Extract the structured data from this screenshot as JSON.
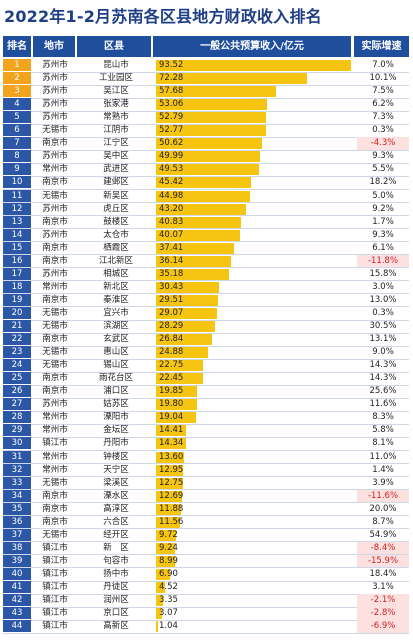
{
  "title": "2022年1-2月苏南各区县地方财政收入排名",
  "headers": {
    "rank": "排名",
    "city": "地市",
    "district": "区县",
    "value": "一般公共预算收入/亿元",
    "growth": "实际增速"
  },
  "colors": {
    "header_bg": "#1f4f9c",
    "bar": "#f6c511",
    "rank_top": "#f1a41c",
    "rank_rest": "#2b57a6",
    "negative_text": "#d21f1f",
    "negative_bg": "#fde0e0"
  },
  "chart_data": {
    "type": "bar",
    "xlim": [
      0,
      95
    ],
    "rows": [
      {
        "rank": "1",
        "city": "苏州市",
        "district": "昆山市",
        "value": 93.52,
        "value_text": "93.52",
        "growth": "7.0%",
        "negative": false
      },
      {
        "rank": "2",
        "city": "苏州市",
        "district": "工业园区",
        "value": 72.28,
        "value_text": "72.28",
        "growth": "10.1%",
        "negative": false
      },
      {
        "rank": "3",
        "city": "苏州市",
        "district": "吴江区",
        "value": 57.68,
        "value_text": "57.68",
        "growth": "7.5%",
        "negative": false
      },
      {
        "rank": "4",
        "city": "苏州市",
        "district": "张家港",
        "value": 53.06,
        "value_text": "53.06",
        "growth": "6.2%",
        "negative": false
      },
      {
        "rank": "5",
        "city": "苏州市",
        "district": "常熟市",
        "value": 52.79,
        "value_text": "52.79",
        "growth": "7.3%",
        "negative": false
      },
      {
        "rank": "6",
        "city": "无锡市",
        "district": "江阴市",
        "value": 52.77,
        "value_text": "52.77",
        "growth": "0.3%",
        "negative": false
      },
      {
        "rank": "7",
        "city": "南京市",
        "district": "江宁区",
        "value": 50.62,
        "value_text": "50.62",
        "growth": "-4.3%",
        "negative": true
      },
      {
        "rank": "8",
        "city": "苏州市",
        "district": "吴中区",
        "value": 49.99,
        "value_text": "49.99",
        "growth": "9.3%",
        "negative": false
      },
      {
        "rank": "9",
        "city": "常州市",
        "district": "武进区",
        "value": 49.53,
        "value_text": "49.53",
        "growth": "5.5%",
        "negative": false
      },
      {
        "rank": "10",
        "city": "南京市",
        "district": "建邺区",
        "value": 45.42,
        "value_text": "45.42",
        "growth": "18.2%",
        "negative": false
      },
      {
        "rank": "11",
        "city": "无锡市",
        "district": "新吴区",
        "value": 44.98,
        "value_text": "44.98",
        "growth": "5.0%",
        "negative": false
      },
      {
        "rank": "12",
        "city": "苏州市",
        "district": "虎丘区",
        "value": 43.2,
        "value_text": "43.20",
        "growth": "9.2%",
        "negative": false
      },
      {
        "rank": "13",
        "city": "南京市",
        "district": "鼓楼区",
        "value": 40.83,
        "value_text": "40.83",
        "growth": "1.7%",
        "negative": false
      },
      {
        "rank": "14",
        "city": "苏州市",
        "district": "太仓市",
        "value": 40.07,
        "value_text": "40.07",
        "growth": "9.3%",
        "negative": false
      },
      {
        "rank": "15",
        "city": "南京市",
        "district": "栖霞区",
        "value": 37.41,
        "value_text": "37.41",
        "growth": "6.1%",
        "negative": false
      },
      {
        "rank": "16",
        "city": "南京市",
        "district": "江北新区",
        "value": 36.14,
        "value_text": "36.14",
        "growth": "-11.8%",
        "negative": true
      },
      {
        "rank": "17",
        "city": "苏州市",
        "district": "相城区",
        "value": 35.18,
        "value_text": "35.18",
        "growth": "15.8%",
        "negative": false
      },
      {
        "rank": "18",
        "city": "常州市",
        "district": "新北区",
        "value": 30.43,
        "value_text": "30.43",
        "growth": "3.0%",
        "negative": false
      },
      {
        "rank": "19",
        "city": "南京市",
        "district": "秦淮区",
        "value": 29.51,
        "value_text": "29.51",
        "growth": "13.0%",
        "negative": false
      },
      {
        "rank": "20",
        "city": "无锡市",
        "district": "宜兴市",
        "value": 29.07,
        "value_text": "29.07",
        "growth": "0.3%",
        "negative": false
      },
      {
        "rank": "21",
        "city": "无锡市",
        "district": "滨湖区",
        "value": 28.29,
        "value_text": "28.29",
        "growth": "30.5%",
        "negative": false
      },
      {
        "rank": "22",
        "city": "南京市",
        "district": "玄武区",
        "value": 26.84,
        "value_text": "26.84",
        "growth": "13.1%",
        "negative": false
      },
      {
        "rank": "23",
        "city": "无锡市",
        "district": "惠山区",
        "value": 24.88,
        "value_text": "24.88",
        "growth": "9.0%",
        "negative": false
      },
      {
        "rank": "24",
        "city": "无锡市",
        "district": "锡山区",
        "value": 22.75,
        "value_text": "22.75",
        "growth": "14.3%",
        "negative": false
      },
      {
        "rank": "25",
        "city": "南京市",
        "district": "雨花台区",
        "value": 22.45,
        "value_text": "22.45",
        "growth": "14.3%",
        "negative": false
      },
      {
        "rank": "26",
        "city": "南京市",
        "district": "浦口区",
        "value": 19.85,
        "value_text": "19.85",
        "growth": "25.6%",
        "negative": false
      },
      {
        "rank": "27",
        "city": "苏州市",
        "district": "姑苏区",
        "value": 19.8,
        "value_text": "19.80",
        "growth": "11.6%",
        "negative": false
      },
      {
        "rank": "28",
        "city": "常州市",
        "district": "溧阳市",
        "value": 19.04,
        "value_text": "19.04",
        "growth": "8.3%",
        "negative": false
      },
      {
        "rank": "29",
        "city": "常州市",
        "district": "金坛区",
        "value": 14.41,
        "value_text": "14.41",
        "growth": "5.8%",
        "negative": false
      },
      {
        "rank": "30",
        "city": "镇江市",
        "district": "丹阳市",
        "value": 14.34,
        "value_text": "14.34",
        "growth": "8.1%",
        "negative": false
      },
      {
        "rank": "31",
        "city": "常州市",
        "district": "钟楼区",
        "value": 13.6,
        "value_text": "13.60",
        "growth": "11.0%",
        "negative": false
      },
      {
        "rank": "32",
        "city": "常州市",
        "district": "天宁区",
        "value": 12.95,
        "value_text": "12.95",
        "growth": "1.4%",
        "negative": false
      },
      {
        "rank": "33",
        "city": "无锡市",
        "district": "梁溪区",
        "value": 12.75,
        "value_text": "12.75",
        "growth": "3.9%",
        "negative": false
      },
      {
        "rank": "34",
        "city": "南京市",
        "district": "溧水区",
        "value": 12.69,
        "value_text": "12.69",
        "growth": "-11.6%",
        "negative": true
      },
      {
        "rank": "35",
        "city": "南京市",
        "district": "高淳区",
        "value": 11.88,
        "value_text": "11.88",
        "growth": "20.0%",
        "negative": false
      },
      {
        "rank": "36",
        "city": "南京市",
        "district": "六合区",
        "value": 11.56,
        "value_text": "11.56",
        "growth": "8.7%",
        "negative": false
      },
      {
        "rank": "37",
        "city": "无锡市",
        "district": "经开区",
        "value": 9.72,
        "value_text": "9.72",
        "growth": "54.9%",
        "negative": false
      },
      {
        "rank": "38",
        "city": "镇江市",
        "district": "新　区",
        "value": 9.24,
        "value_text": "9.24",
        "growth": "-8.4%",
        "negative": true
      },
      {
        "rank": "39",
        "city": "镇江市",
        "district": "句容市",
        "value": 8.99,
        "value_text": "8.99",
        "growth": "-15.9%",
        "negative": true
      },
      {
        "rank": "40",
        "city": "镇江市",
        "district": "扬中市",
        "value": 6.9,
        "value_text": "6.90",
        "growth": "18.4%",
        "negative": false
      },
      {
        "rank": "41",
        "city": "镇江市",
        "district": "丹徒区",
        "value": 4.52,
        "value_text": "4.52",
        "growth": "3.1%",
        "negative": false
      },
      {
        "rank": "42",
        "city": "镇江市",
        "district": "润州区",
        "value": 3.35,
        "value_text": "3.35",
        "growth": "-2.1%",
        "negative": true
      },
      {
        "rank": "43",
        "city": "镇江市",
        "district": "京口区",
        "value": 3.07,
        "value_text": "3.07",
        "growth": "-2.8%",
        "negative": true
      },
      {
        "rank": "44",
        "city": "镇江市",
        "district": "高新区",
        "value": 1.04,
        "value_text": "1.04",
        "growth": "-6.9%",
        "negative": true
      }
    ]
  }
}
